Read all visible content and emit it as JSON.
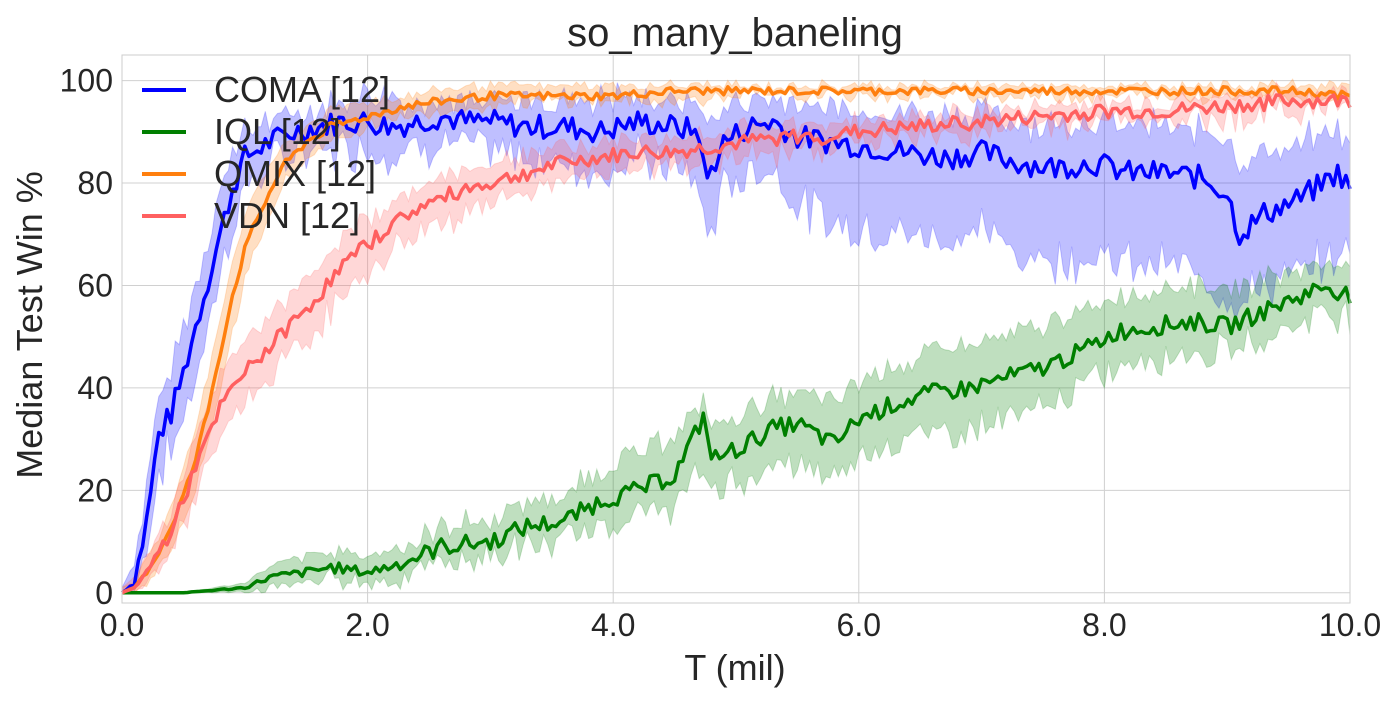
{
  "chart_data": {
    "type": "line",
    "title": "so_many_baneling",
    "xlabel": "T (mil)",
    "ylabel": "Median Test Win %",
    "xlim": [
      0.0,
      10.0
    ],
    "ylim": [
      -2,
      105
    ],
    "xticks": [
      0.0,
      2.0,
      4.0,
      6.0,
      8.0,
      10.0
    ],
    "xtick_labels": [
      "0.0",
      "2.0",
      "4.0",
      "6.0",
      "8.0",
      "10.0"
    ],
    "yticks": [
      0,
      20,
      40,
      60,
      80,
      100
    ],
    "ytick_labels": [
      "0",
      "20",
      "40",
      "60",
      "80",
      "100"
    ],
    "grid": true,
    "legend_position": "top-left",
    "series": [
      {
        "name": "COMA [12]",
        "color": "#0000ff",
        "x": [
          0.0,
          0.1,
          0.2,
          0.3,
          0.4,
          0.5,
          0.6,
          0.7,
          0.8,
          0.9,
          1.0,
          1.2,
          1.4,
          1.6,
          1.8,
          2.0,
          2.2,
          2.4,
          2.6,
          2.8,
          3.0,
          3.3,
          3.6,
          3.9,
          4.2,
          4.5,
          4.7,
          4.75,
          4.9,
          5.1,
          5.3,
          5.5,
          5.8,
          6.1,
          6.4,
          6.7,
          7.0,
          7.3,
          7.6,
          7.9,
          8.2,
          8.5,
          8.8,
          9.0,
          9.1,
          9.3,
          9.6,
          9.9,
          10.0
        ],
        "values": [
          0,
          2,
          14,
          31,
          35,
          43,
          52,
          61,
          70,
          79,
          85,
          88,
          90,
          91,
          92,
          92,
          91,
          92,
          93,
          92,
          92,
          91,
          91,
          90,
          92,
          91,
          90,
          80,
          88,
          91,
          92,
          89,
          88,
          87,
          86,
          85,
          86,
          84,
          83,
          84,
          82,
          82,
          81,
          78,
          70,
          74,
          77,
          82,
          79
        ],
        "lower": [
          0,
          0,
          9,
          24,
          28,
          34,
          42,
          52,
          62,
          72,
          79,
          83,
          86,
          86,
          87,
          87,
          86,
          87,
          88,
          87,
          86,
          85,
          84,
          82,
          85,
          83,
          80,
          68,
          79,
          82,
          83,
          76,
          72,
          71,
          70,
          69,
          71,
          66,
          65,
          66,
          64,
          64,
          62,
          58,
          57,
          60,
          62,
          66,
          66
        ],
        "upper": [
          1,
          6,
          20,
          38,
          43,
          52,
          60,
          70,
          78,
          86,
          90,
          92,
          94,
          95,
          96,
          97,
          96,
          96,
          97,
          96,
          96,
          96,
          96,
          96,
          97,
          96,
          96,
          91,
          95,
          96,
          96,
          95,
          95,
          94,
          94,
          93,
          94,
          92,
          91,
          92,
          91,
          91,
          90,
          88,
          84,
          86,
          88,
          90,
          88
        ]
      },
      {
        "name": "IQL [12]",
        "color": "#007f00",
        "x": [
          0.0,
          0.5,
          1.0,
          1.2,
          1.5,
          1.7,
          2.0,
          2.3,
          2.6,
          3.0,
          3.3,
          3.6,
          3.9,
          4.2,
          4.5,
          4.75,
          4.8,
          5.0,
          5.3,
          5.5,
          5.8,
          6.0,
          6.3,
          6.6,
          6.9,
          7.2,
          7.5,
          7.8,
          8.1,
          8.4,
          8.7,
          9.0,
          9.3,
          9.6,
          9.8,
          10.0
        ],
        "values": [
          0,
          0,
          1,
          3,
          4,
          5,
          4,
          6,
          9,
          10,
          13,
          14,
          18,
          20,
          23,
          35,
          26,
          28,
          32,
          33,
          29,
          34,
          37,
          39,
          40,
          42,
          44,
          47,
          51,
          52,
          53,
          52,
          55,
          58,
          60,
          58
        ],
        "lower": [
          0,
          0,
          0,
          1,
          2,
          3,
          2,
          3,
          6,
          7,
          9,
          10,
          13,
          15,
          17,
          24,
          20,
          22,
          24,
          25,
          22,
          27,
          30,
          31,
          32,
          34,
          36,
          40,
          44,
          46,
          47,
          47,
          50,
          53,
          55,
          54
        ],
        "upper": [
          0,
          0,
          2,
          5,
          7,
          8,
          7,
          9,
          13,
          14,
          18,
          19,
          24,
          27,
          31,
          38,
          32,
          34,
          38,
          39,
          37,
          41,
          44,
          47,
          48,
          50,
          52,
          55,
          58,
          59,
          60,
          59,
          61,
          63,
          65,
          64
        ]
      },
      {
        "name": "QMIX [12]",
        "color": "#ff7f0e",
        "x": [
          0.0,
          0.1,
          0.2,
          0.3,
          0.4,
          0.5,
          0.6,
          0.7,
          0.8,
          0.9,
          1.0,
          1.1,
          1.2,
          1.3,
          1.5,
          1.7,
          2.0,
          2.3,
          2.6,
          3.0,
          3.5,
          4.0,
          4.5,
          5.0,
          5.5,
          6.0,
          6.5,
          7.0,
          7.5,
          8.0,
          8.5,
          9.0,
          9.5,
          10.0
        ],
        "values": [
          0,
          1,
          4,
          8,
          13,
          19,
          26,
          36,
          47,
          58,
          67,
          73,
          78,
          83,
          88,
          91,
          93,
          95,
          96,
          97,
          97,
          97,
          98,
          98,
          98,
          98,
          98,
          98,
          98,
          98,
          98,
          98,
          98,
          97
        ],
        "lower": [
          0,
          0,
          2,
          5,
          9,
          14,
          20,
          29,
          40,
          51,
          61,
          68,
          74,
          79,
          85,
          88,
          91,
          93,
          94,
          95,
          96,
          96,
          96,
          97,
          97,
          97,
          97,
          97,
          97,
          97,
          97,
          97,
          97,
          96
        ],
        "upper": [
          1,
          2,
          7,
          11,
          17,
          24,
          32,
          43,
          54,
          65,
          73,
          79,
          83,
          87,
          91,
          94,
          96,
          97,
          98,
          99,
          99,
          99,
          99,
          99,
          99,
          99,
          99,
          99,
          99,
          99,
          99,
          99,
          99,
          99
        ]
      },
      {
        "name": "VDN [12]",
        "color": "#ff6060",
        "x": [
          0.0,
          0.1,
          0.2,
          0.3,
          0.4,
          0.5,
          0.6,
          0.7,
          0.8,
          0.9,
          1.0,
          1.2,
          1.4,
          1.6,
          1.8,
          2.0,
          2.2,
          2.4,
          2.6,
          2.8,
          3.0,
          3.3,
          3.6,
          3.9,
          4.2,
          4.5,
          4.8,
          5.1,
          5.4,
          5.7,
          6.0,
          6.5,
          7.0,
          7.5,
          8.0,
          8.5,
          9.0,
          9.5,
          10.0
        ],
        "values": [
          0,
          1,
          4,
          8,
          12,
          18,
          25,
          30,
          36,
          40,
          43,
          48,
          53,
          58,
          64,
          68,
          72,
          75,
          77,
          79,
          80,
          82,
          84,
          85,
          86,
          86,
          87,
          88,
          89,
          89,
          90,
          91,
          92,
          93,
          94,
          94,
          95,
          96,
          96
        ],
        "lower": [
          0,
          0,
          2,
          5,
          8,
          13,
          19,
          24,
          30,
          34,
          37,
          42,
          47,
          52,
          58,
          62,
          67,
          70,
          72,
          74,
          76,
          78,
          80,
          82,
          83,
          83,
          84,
          85,
          86,
          87,
          88,
          89,
          90,
          91,
          92,
          92,
          93,
          94,
          95
        ],
        "upper": [
          1,
          3,
          7,
          11,
          16,
          23,
          31,
          36,
          42,
          46,
          49,
          54,
          59,
          64,
          69,
          73,
          76,
          79,
          81,
          83,
          84,
          86,
          87,
          88,
          89,
          89,
          90,
          91,
          91,
          92,
          92,
          93,
          94,
          95,
          96,
          96,
          97,
          98,
          98
        ]
      }
    ]
  }
}
